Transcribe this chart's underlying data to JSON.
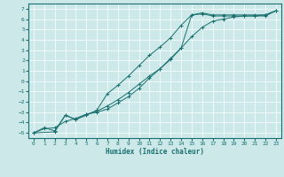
{
  "xlabel": "Humidex (Indice chaleur)",
  "background_color": "#cce8e8",
  "grid_color": "#ffffff",
  "line_color": "#1a7070",
  "xlim": [
    -0.5,
    23.5
  ],
  "ylim": [
    -5.5,
    7.5
  ],
  "xticks": [
    0,
    1,
    2,
    3,
    4,
    5,
    6,
    7,
    8,
    9,
    10,
    11,
    12,
    13,
    14,
    15,
    16,
    17,
    18,
    19,
    20,
    21,
    22,
    23
  ],
  "yticks": [
    -5,
    -4,
    -3,
    -2,
    -1,
    0,
    1,
    2,
    3,
    4,
    5,
    6,
    7
  ],
  "line1_x": [
    0,
    1,
    2,
    3,
    4,
    5,
    6,
    7,
    8,
    9,
    10,
    11,
    12,
    13,
    14,
    15,
    16,
    17,
    18,
    19,
    20,
    21,
    22,
    23
  ],
  "line1_y": [
    -5.0,
    -4.5,
    -4.8,
    -3.3,
    -3.7,
    -3.3,
    -2.8,
    -1.2,
    -0.4,
    0.5,
    1.5,
    2.5,
    3.3,
    4.2,
    5.4,
    6.4,
    6.5,
    6.3,
    6.3,
    6.3,
    6.3,
    6.3,
    6.3,
    6.8
  ],
  "line2_x": [
    0,
    2,
    3,
    4,
    5,
    6,
    7,
    8,
    9,
    10,
    11,
    12,
    13,
    14,
    15,
    16,
    17,
    18,
    19,
    20,
    21,
    22,
    23
  ],
  "line2_y": [
    -5.0,
    -4.9,
    -3.3,
    -3.7,
    -3.2,
    -3.0,
    -2.7,
    -2.1,
    -1.5,
    -0.7,
    0.3,
    1.2,
    2.2,
    3.2,
    6.4,
    6.6,
    6.4,
    6.4,
    6.4,
    6.4,
    6.4,
    6.4,
    6.8
  ],
  "line3_x": [
    0,
    1,
    2,
    3,
    4,
    5,
    6,
    7,
    8,
    9,
    10,
    11,
    12,
    13,
    14,
    15,
    16,
    17,
    18,
    19,
    20,
    21,
    22,
    23
  ],
  "line3_y": [
    -5.0,
    -4.6,
    -4.5,
    -3.9,
    -3.6,
    -3.2,
    -2.9,
    -2.4,
    -1.8,
    -1.1,
    -0.3,
    0.5,
    1.2,
    2.1,
    3.2,
    4.3,
    5.2,
    5.8,
    6.0,
    6.2,
    6.3,
    6.3,
    6.4,
    6.8
  ]
}
